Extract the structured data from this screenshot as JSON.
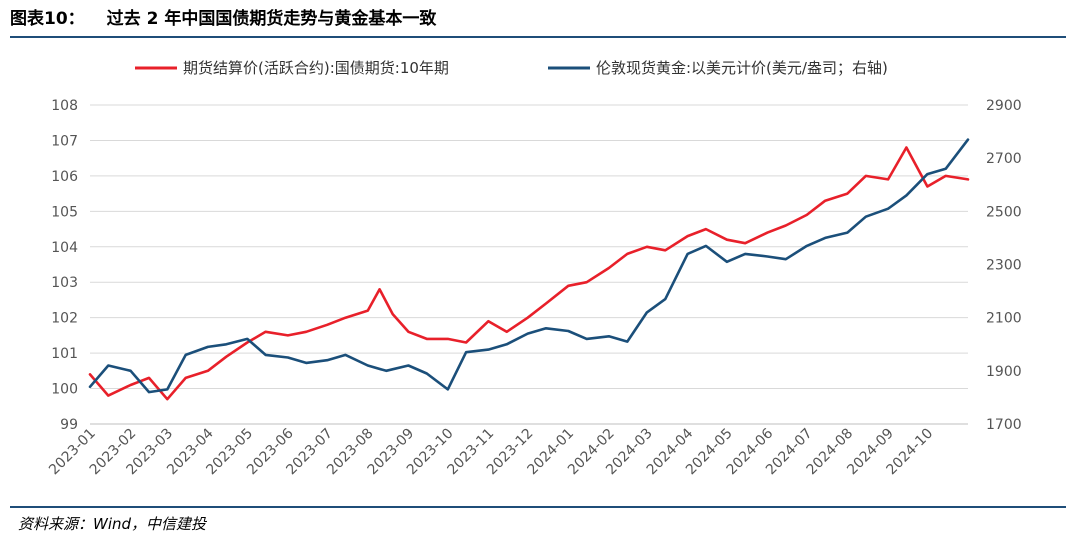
{
  "header": {
    "figure_number": "图表10：",
    "title": "过去 2 年中国国债期货走势与黄金基本一致"
  },
  "footer": {
    "source": "资料来源：Wind，中信建投"
  },
  "colors": {
    "rule": "#1f4e79",
    "grid": "#d9d9d9"
  },
  "chart_data": {
    "type": "line",
    "grid": "horizontal",
    "legend_position": "top",
    "x_ticks": [
      "2023-01",
      "2023-02",
      "2023-03",
      "2023-04",
      "2023-05",
      "2023-06",
      "2023-07",
      "2023-08",
      "2023-09",
      "2023-10",
      "2023-11",
      "2023-12",
      "2024-01",
      "2024-02",
      "2024-03",
      "2024-04",
      "2024-05",
      "2024-06",
      "2024-07",
      "2024-08",
      "2024-09",
      "2024-10"
    ],
    "x_range": [
      "2023-01",
      "2024-11"
    ],
    "left_axis": {
      "ticks": [
        99,
        100,
        101,
        102,
        103,
        104,
        105,
        106,
        107,
        108
      ],
      "range": [
        99,
        108
      ]
    },
    "right_axis": {
      "ticks": [
        1700,
        1900,
        2100,
        2300,
        2500,
        2700,
        2900
      ],
      "range": [
        1700,
        2900
      ]
    },
    "series": [
      {
        "name": "期货结算价(活跃合约):国债期货:10年期",
        "axis": "left",
        "color": "#e8202a",
        "x": [
          "2023-01",
          "2023-01-15",
          "2023-02",
          "2023-02-15",
          "2023-03",
          "2023-03-15",
          "2023-04",
          "2023-04-15",
          "2023-05",
          "2023-05-15",
          "2023-06",
          "2023-06-15",
          "2023-07",
          "2023-07-15",
          "2023-08",
          "2023-08-10",
          "2023-08-20",
          "2023-09",
          "2023-09-15",
          "2023-10",
          "2023-10-15",
          "2023-11",
          "2023-11-15",
          "2023-12",
          "2023-12-15",
          "2024-01",
          "2024-01-15",
          "2024-02",
          "2024-02-15",
          "2024-03",
          "2024-03-15",
          "2024-04",
          "2024-04-15",
          "2024-05",
          "2024-05-15",
          "2024-06",
          "2024-06-15",
          "2024-07",
          "2024-07-15",
          "2024-08",
          "2024-08-15",
          "2024-09",
          "2024-09-15",
          "2024-10",
          "2024-10-15",
          "2024-11"
        ],
        "y": [
          100.4,
          99.8,
          100.1,
          100.3,
          99.7,
          100.3,
          100.5,
          100.9,
          101.3,
          101.6,
          101.5,
          101.6,
          101.8,
          102.0,
          102.2,
          102.8,
          102.1,
          101.6,
          101.4,
          101.4,
          101.3,
          101.9,
          101.6,
          102.0,
          102.4,
          102.9,
          103.0,
          103.4,
          103.8,
          104.0,
          103.9,
          104.3,
          104.5,
          104.2,
          104.1,
          104.4,
          104.6,
          104.9,
          105.3,
          105.5,
          106.0,
          105.9,
          106.8,
          105.7,
          106.0,
          105.9
        ]
      },
      {
        "name": "伦敦现货黄金:以美元计价(美元/盎司；右轴)",
        "axis": "right",
        "color": "#1b4f7a",
        "x": [
          "2023-01",
          "2023-01-15",
          "2023-02",
          "2023-02-15",
          "2023-03",
          "2023-03-15",
          "2023-04",
          "2023-04-15",
          "2023-05",
          "2023-05-15",
          "2023-06",
          "2023-06-15",
          "2023-07",
          "2023-07-15",
          "2023-08",
          "2023-08-15",
          "2023-09",
          "2023-09-15",
          "2023-10",
          "2023-10-15",
          "2023-11",
          "2023-11-15",
          "2023-12",
          "2023-12-15",
          "2024-01",
          "2024-01-15",
          "2024-02",
          "2024-02-15",
          "2024-03",
          "2024-03-15",
          "2024-04",
          "2024-04-15",
          "2024-05",
          "2024-05-15",
          "2024-06",
          "2024-06-15",
          "2024-07",
          "2024-07-15",
          "2024-08",
          "2024-08-15",
          "2024-09",
          "2024-09-15",
          "2024-10",
          "2024-10-15",
          "2024-11"
        ],
        "y": [
          1840,
          1920,
          1900,
          1820,
          1830,
          1960,
          1990,
          2000,
          2020,
          1960,
          1950,
          1930,
          1940,
          1960,
          1920,
          1900,
          1920,
          1890,
          1830,
          1970,
          1980,
          2000,
          2040,
          2060,
          2050,
          2020,
          2030,
          2010,
          2120,
          2170,
          2340,
          2370,
          2310,
          2340,
          2330,
          2320,
          2370,
          2400,
          2420,
          2480,
          2510,
          2560,
          2640,
          2660,
          2770
        ]
      }
    ]
  }
}
